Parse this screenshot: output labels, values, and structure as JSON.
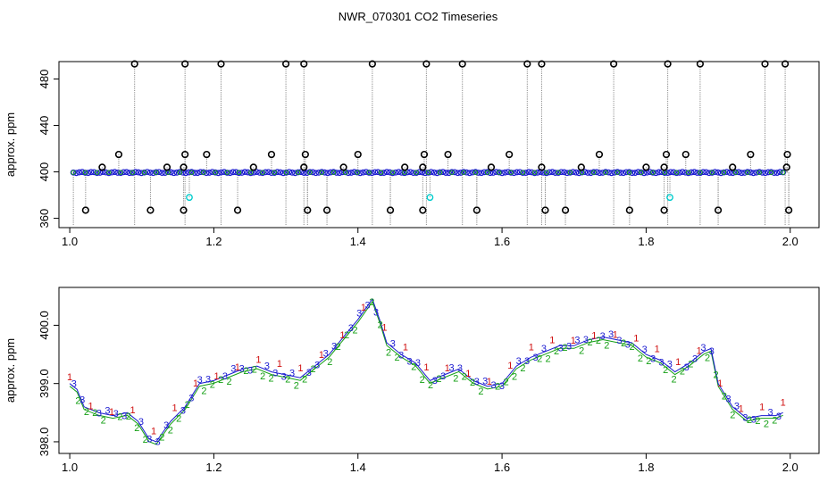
{
  "figure": {
    "title": "NWR_070301  CO2 Timeseries"
  },
  "chart_data": [
    {
      "type": "scatter",
      "title": "",
      "xlabel": "",
      "ylabel": "approx. ppm",
      "xlim": [
        0.985,
        2.04
      ],
      "ylim": [
        352,
        495
      ],
      "x_ticks": [
        1.0,
        1.2,
        1.4,
        1.6,
        1.8,
        2.0
      ],
      "x_tick_labels": [
        "1.0",
        "1.2",
        "1.4",
        "1.6",
        "1.8",
        "2.0"
      ],
      "y_ticks": [
        360,
        400,
        440,
        480
      ],
      "y_tick_labels": [
        "360",
        "400",
        "440",
        "480"
      ],
      "baseline": {
        "x_start": 1.005,
        "x_end": 1.99,
        "y": 399.5
      },
      "outliers_high": [
        {
          "x": 1.09,
          "y": 493
        },
        {
          "x": 1.16,
          "y": 493
        },
        {
          "x": 1.21,
          "y": 493
        },
        {
          "x": 1.3,
          "y": 493
        },
        {
          "x": 1.325,
          "y": 493
        },
        {
          "x": 1.42,
          "y": 493
        },
        {
          "x": 1.495,
          "y": 493
        },
        {
          "x": 1.545,
          "y": 493
        },
        {
          "x": 1.635,
          "y": 493
        },
        {
          "x": 1.655,
          "y": 493
        },
        {
          "x": 1.755,
          "y": 493
        },
        {
          "x": 1.83,
          "y": 493
        },
        {
          "x": 1.875,
          "y": 493
        },
        {
          "x": 1.965,
          "y": 493
        },
        {
          "x": 1.993,
          "y": 493
        }
      ],
      "outliers_mid": [
        {
          "x": 1.045,
          "y": 404
        },
        {
          "x": 1.068,
          "y": 415
        },
        {
          "x": 1.135,
          "y": 404
        },
        {
          "x": 1.158,
          "y": 404
        },
        {
          "x": 1.16,
          "y": 415
        },
        {
          "x": 1.19,
          "y": 415
        },
        {
          "x": 1.255,
          "y": 404
        },
        {
          "x": 1.28,
          "y": 415
        },
        {
          "x": 1.325,
          "y": 404
        },
        {
          "x": 1.327,
          "y": 415
        },
        {
          "x": 1.38,
          "y": 404
        },
        {
          "x": 1.4,
          "y": 415
        },
        {
          "x": 1.465,
          "y": 404
        },
        {
          "x": 1.49,
          "y": 404
        },
        {
          "x": 1.492,
          "y": 415
        },
        {
          "x": 1.525,
          "y": 415
        },
        {
          "x": 1.585,
          "y": 404
        },
        {
          "x": 1.61,
          "y": 415
        },
        {
          "x": 1.655,
          "y": 404
        },
        {
          "x": 1.71,
          "y": 404
        },
        {
          "x": 1.735,
          "y": 415
        },
        {
          "x": 1.8,
          "y": 404
        },
        {
          "x": 1.825,
          "y": 404
        },
        {
          "x": 1.828,
          "y": 415
        },
        {
          "x": 1.855,
          "y": 415
        },
        {
          "x": 1.92,
          "y": 404
        },
        {
          "x": 1.945,
          "y": 415
        },
        {
          "x": 1.995,
          "y": 404
        },
        {
          "x": 1.996,
          "y": 415
        }
      ],
      "outliers_low": [
        {
          "x": 1.022,
          "y": 367
        },
        {
          "x": 1.112,
          "y": 367
        },
        {
          "x": 1.158,
          "y": 367
        },
        {
          "x": 1.233,
          "y": 367
        },
        {
          "x": 1.33,
          "y": 367
        },
        {
          "x": 1.357,
          "y": 367
        },
        {
          "x": 1.445,
          "y": 367
        },
        {
          "x": 1.49,
          "y": 367
        },
        {
          "x": 1.565,
          "y": 367
        },
        {
          "x": 1.66,
          "y": 367
        },
        {
          "x": 1.688,
          "y": 367
        },
        {
          "x": 1.777,
          "y": 367
        },
        {
          "x": 1.825,
          "y": 367
        },
        {
          "x": 1.9,
          "y": 367
        },
        {
          "x": 1.998,
          "y": 367
        }
      ],
      "cyan_points": [
        {
          "x": 1.166,
          "y": 378
        },
        {
          "x": 1.5,
          "y": 378
        },
        {
          "x": 1.833,
          "y": 378
        }
      ]
    },
    {
      "type": "line",
      "title": "",
      "xlabel": "",
      "ylabel": "approx. ppm",
      "xlim": [
        0.985,
        2.04
      ],
      "ylim": [
        397.8,
        400.65
      ],
      "x_ticks": [
        1.0,
        1.2,
        1.4,
        1.6,
        1.8,
        2.0
      ],
      "x_tick_labels": [
        "1.0",
        "1.2",
        "1.4",
        "1.6",
        "1.8",
        "2.0"
      ],
      "y_ticks": [
        398.0,
        399.0,
        400.0
      ],
      "y_tick_labels": [
        "398.0",
        "399.0",
        "400.0"
      ],
      "series_points": [
        [
          1.0,
          399.0
        ],
        [
          1.01,
          398.9
        ],
        [
          1.02,
          398.6
        ],
        [
          1.04,
          398.5
        ],
        [
          1.06,
          398.45
        ],
        [
          1.08,
          398.5
        ],
        [
          1.095,
          398.35
        ],
        [
          1.11,
          398.05
        ],
        [
          1.12,
          398.0
        ],
        [
          1.14,
          398.35
        ],
        [
          1.16,
          398.6
        ],
        [
          1.18,
          399.0
        ],
        [
          1.2,
          399.05
        ],
        [
          1.22,
          399.15
        ],
        [
          1.24,
          399.25
        ],
        [
          1.26,
          399.3
        ],
        [
          1.28,
          399.2
        ],
        [
          1.3,
          399.15
        ],
        [
          1.32,
          399.1
        ],
        [
          1.34,
          399.3
        ],
        [
          1.36,
          399.5
        ],
        [
          1.38,
          399.8
        ],
        [
          1.4,
          400.1
        ],
        [
          1.42,
          400.45
        ],
        [
          1.43,
          400.1
        ],
        [
          1.44,
          399.7
        ],
        [
          1.46,
          399.5
        ],
        [
          1.48,
          399.35
        ],
        [
          1.5,
          399.05
        ],
        [
          1.52,
          399.15
        ],
        [
          1.54,
          399.25
        ],
        [
          1.56,
          399.05
        ],
        [
          1.58,
          398.95
        ],
        [
          1.6,
          399.0
        ],
        [
          1.62,
          399.3
        ],
        [
          1.64,
          399.45
        ],
        [
          1.66,
          399.55
        ],
        [
          1.68,
          399.65
        ],
        [
          1.7,
          399.65
        ],
        [
          1.72,
          399.75
        ],
        [
          1.74,
          399.8
        ],
        [
          1.76,
          399.75
        ],
        [
          1.78,
          399.7
        ],
        [
          1.8,
          399.5
        ],
        [
          1.82,
          399.4
        ],
        [
          1.84,
          399.2
        ],
        [
          1.86,
          399.35
        ],
        [
          1.88,
          399.55
        ],
        [
          1.89,
          399.6
        ],
        [
          1.9,
          399.0
        ],
        [
          1.92,
          398.6
        ],
        [
          1.94,
          398.4
        ],
        [
          1.96,
          398.45
        ],
        [
          1.98,
          398.45
        ],
        [
          1.99,
          398.5
        ]
      ],
      "flag_labels": [
        "1",
        "2",
        "3"
      ],
      "flag_colors": [
        "#d01010",
        "#16a016",
        "#1a1ad0"
      ]
    }
  ]
}
